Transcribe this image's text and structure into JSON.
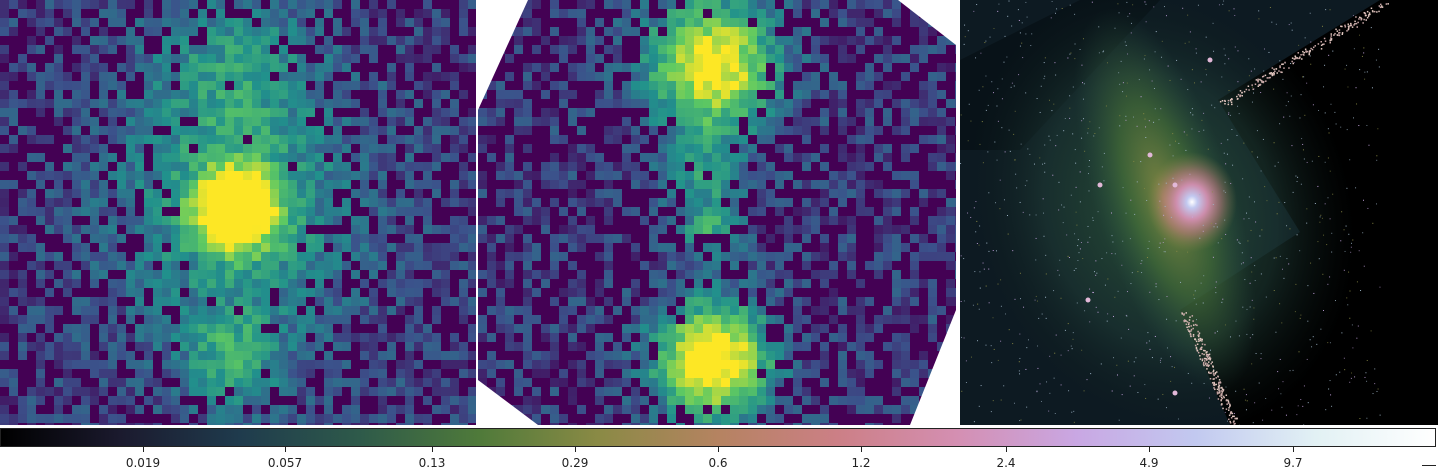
{
  "panels": [
    {
      "name": "left-image"
    },
    {
      "name": "middle-image"
    },
    {
      "name": "right-image"
    }
  ],
  "colorbar": {
    "gradient": [
      "#000000",
      "#1b1a2e",
      "#1f3b4d",
      "#2e5a4a",
      "#4f7a3a",
      "#8a8a45",
      "#b58361",
      "#cc7f86",
      "#d48fb2",
      "#c9a7e3",
      "#c2c9f0",
      "#e2f1f4",
      "#ffffff"
    ],
    "ticks": [
      "0.019",
      "0.057",
      "0.13",
      "0.29",
      "0.6",
      "1.2",
      "2.4",
      "4.9",
      "9.7"
    ]
  },
  "colors": {
    "viridis_dark": "#440154",
    "viridis_mid": "#21918c",
    "viridis_bright": "#fde725"
  }
}
